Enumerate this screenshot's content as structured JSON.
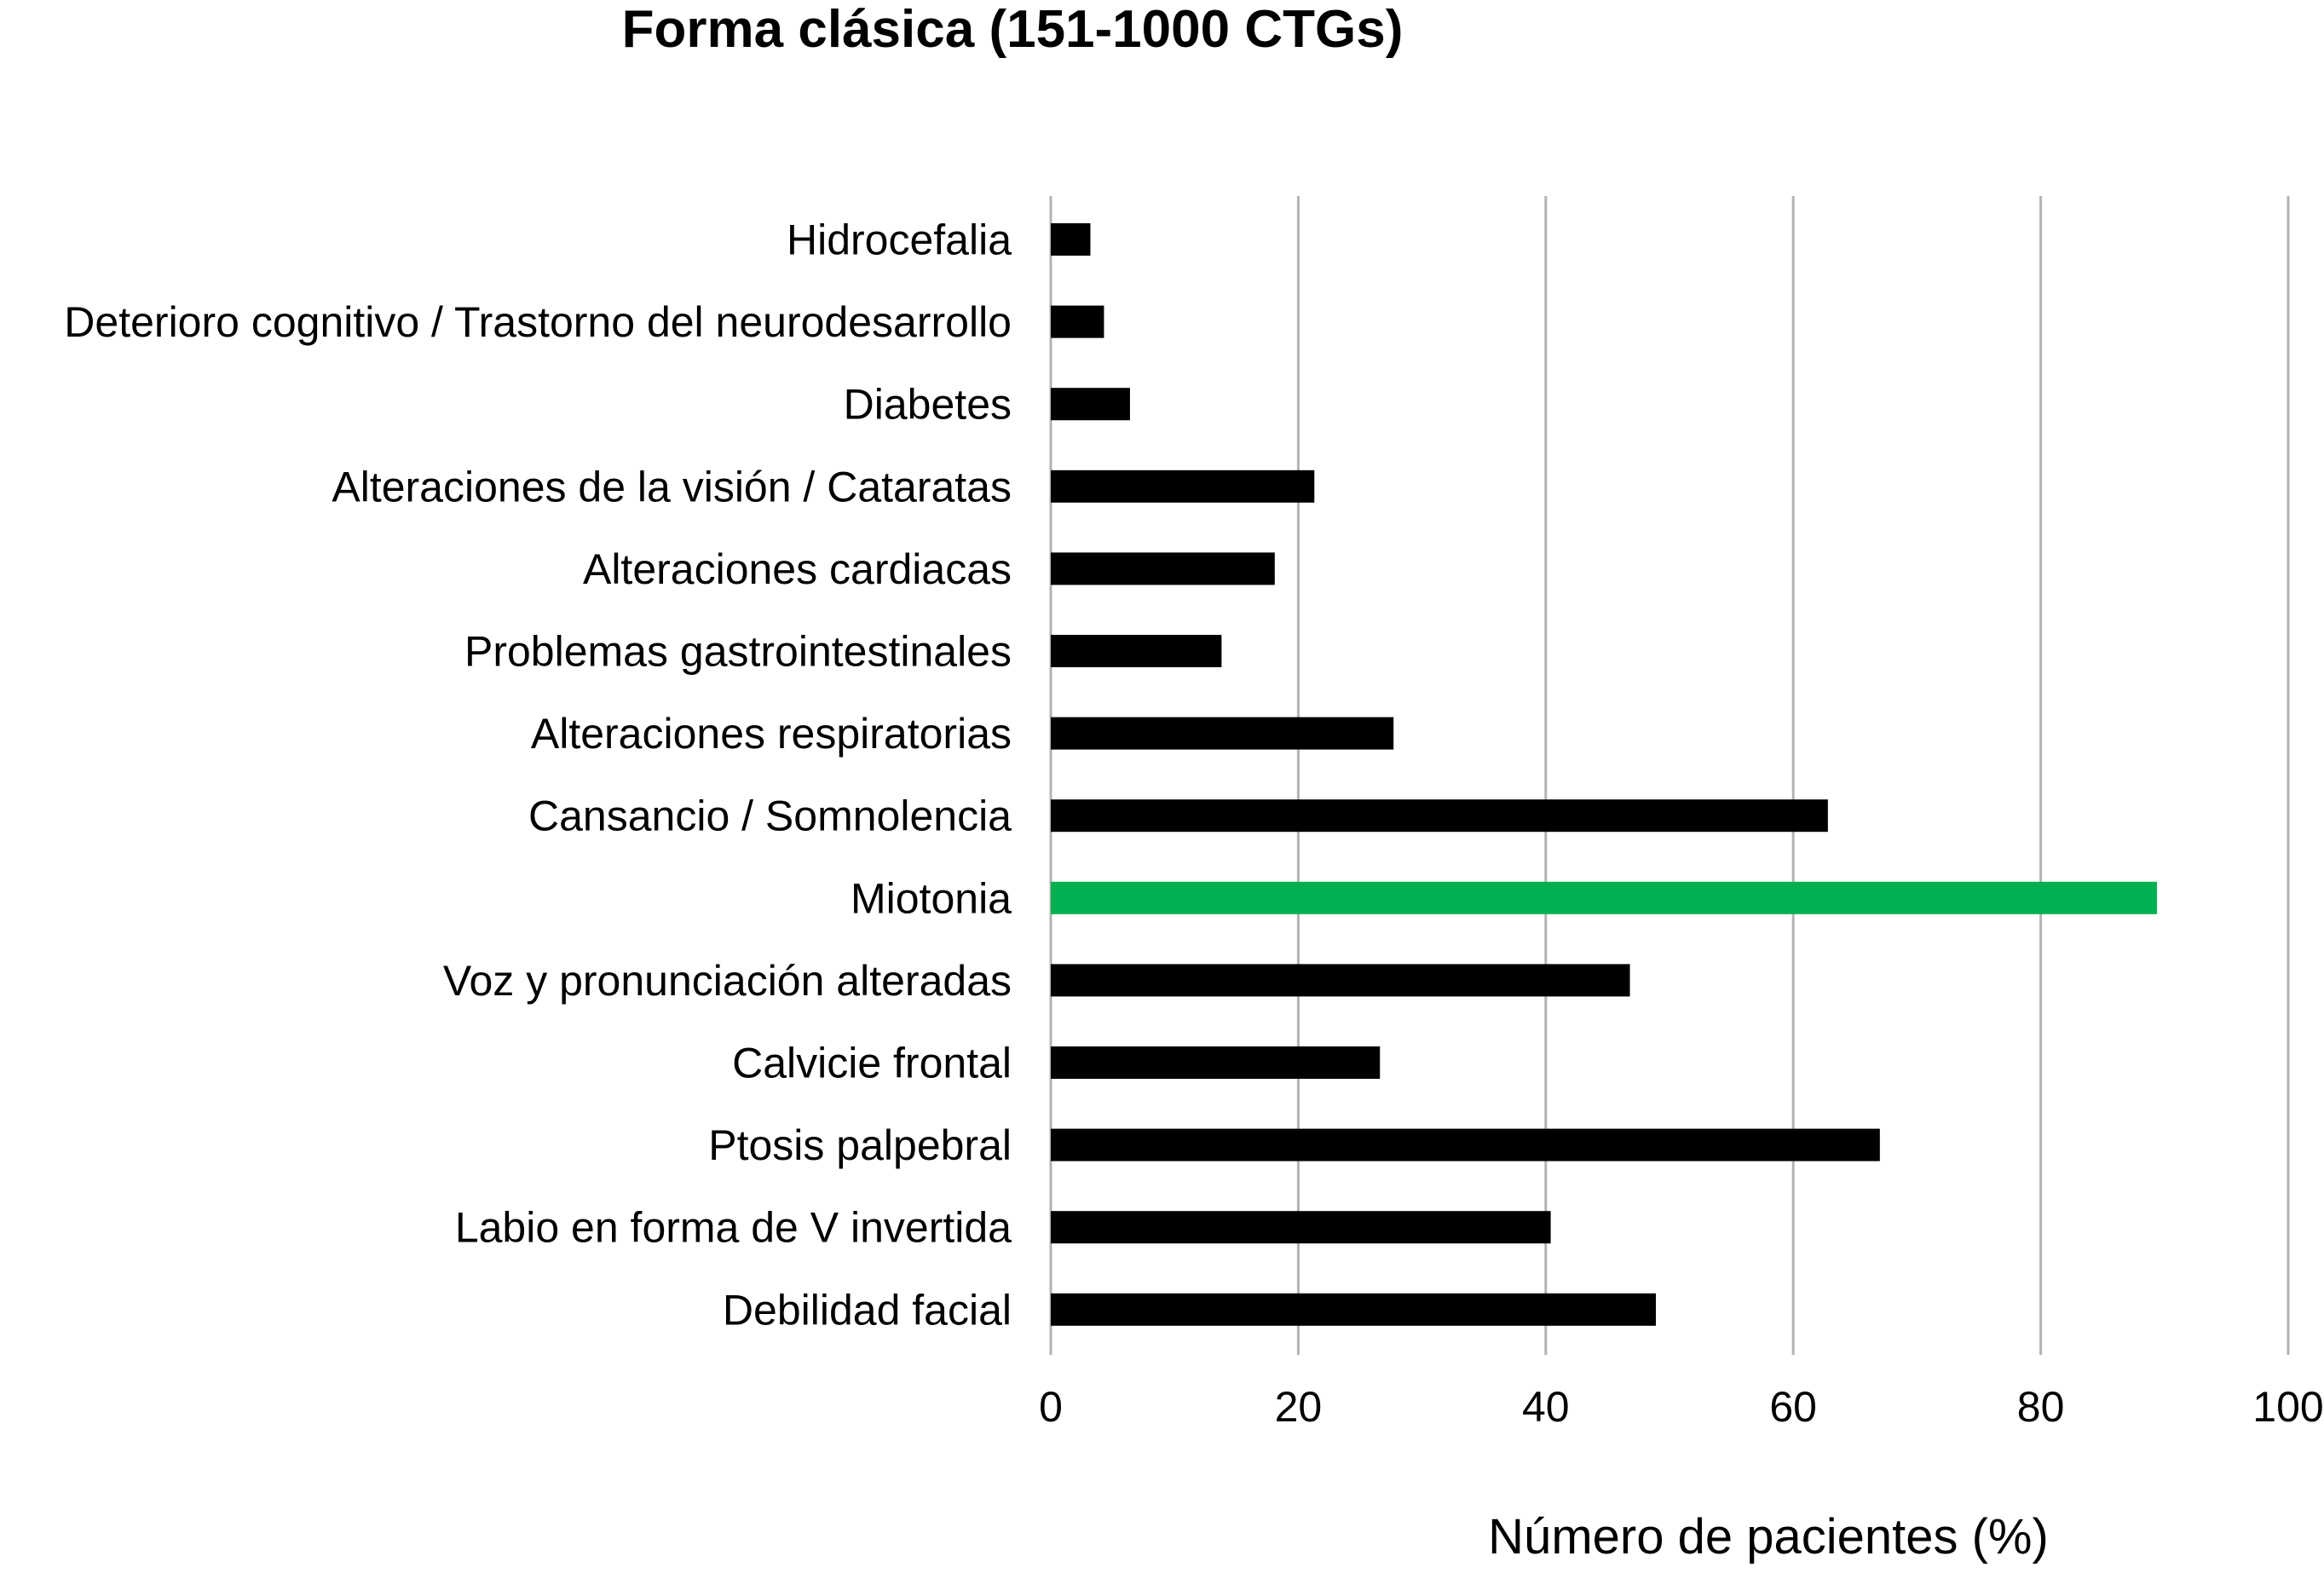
{
  "chart_data": {
    "type": "bar",
    "orientation": "horizontal",
    "title": "Forma clásica (151-1000 CTGs)",
    "xlabel": "Número de pacientes (%)",
    "ylabel": "",
    "xlim": [
      0,
      100
    ],
    "ticks": [
      0,
      20,
      40,
      60,
      80,
      100
    ],
    "tick_labels": [
      "0",
      "20",
      "40",
      "60",
      "80",
      "100"
    ],
    "grid": true,
    "legend": "none",
    "categories": [
      "Hidrocefalia",
      "Deterioro cognitivo / Trastorno del neurodesarrollo",
      "Diabetes",
      "Alteraciones de la visión / Cataratas",
      "Alteraciones cardiacas",
      "Problemas gastrointestinales",
      "Alteraciones respiratorias",
      "Cansancio / Somnolencia",
      "Miotonia",
      "Voz y pronunciación alteradas",
      "Calvicie frontal",
      "Ptosis palpebral",
      "Labio en forma de V invertida",
      "Debilidad facial"
    ],
    "values": [
      3.2,
      4.3,
      6.4,
      21.3,
      18.1,
      13.8,
      27.7,
      62.8,
      89.4,
      46.8,
      26.6,
      67.0,
      40.4,
      48.9
    ],
    "highlight_index": 8,
    "colors": {
      "bar": "#000000",
      "highlight": "#00b050",
      "grid": "#b3b3b3",
      "text": "#000000"
    }
  }
}
